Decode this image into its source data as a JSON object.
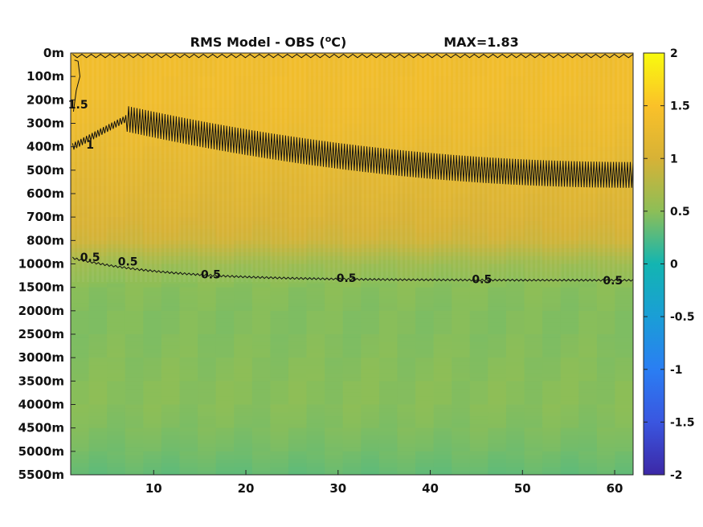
{
  "chart_data": {
    "type": "heatmap",
    "title_main": "RMS Model - OBS (",
    "title_unit_sup": "o",
    "title_unit_tail": "C)",
    "max_label": "MAX=1.83",
    "x_range": [
      1,
      62
    ],
    "x_ticks": [
      10,
      20,
      30,
      40,
      50,
      60
    ],
    "y_tick_labels": [
      "0m",
      "100m",
      "200m",
      "300m",
      "400m",
      "500m",
      "600m",
      "700m",
      "800m",
      "1000m",
      "1500m",
      "2000m",
      "2500m",
      "3000m",
      "3500m",
      "4000m",
      "4500m",
      "5000m",
      "5500m"
    ],
    "colorbar": {
      "range": [
        -2,
        2
      ],
      "tick_values": [
        2,
        1.5,
        1,
        0.5,
        0,
        -0.5,
        -1,
        -1.5,
        -2
      ],
      "tick_labels": [
        "2",
        "1.5",
        "1",
        "0.5",
        "0",
        "-0.5",
        "-1",
        "-1.5",
        "-2"
      ],
      "colormap": "parula"
    },
    "field_by_depth_level": [
      1.35,
      1.35,
      1.34,
      1.3,
      1.24,
      1.17,
      1.1,
      1.03,
      0.94,
      0.6,
      0.48,
      0.46,
      0.46,
      0.47,
      0.48,
      0.48,
      0.45,
      0.4,
      0.33
    ],
    "contour_labels": [
      {
        "text": "1.5",
        "x": 1.8,
        "y": 2.2
      },
      {
        "text": "1",
        "x": 3.1,
        "y": 3.9
      },
      {
        "text": "0.5",
        "x": 3.1,
        "y": 8.7
      },
      {
        "text": "0.5",
        "x": 7.2,
        "y": 8.9
      },
      {
        "text": "0.5",
        "x": 16.2,
        "y": 9.45
      },
      {
        "text": "0.5",
        "x": 30.9,
        "y": 9.6
      },
      {
        "text": "0.5",
        "x": 45.6,
        "y": 9.65
      },
      {
        "text": "0.5",
        "x": 59.8,
        "y": 9.7
      }
    ]
  }
}
